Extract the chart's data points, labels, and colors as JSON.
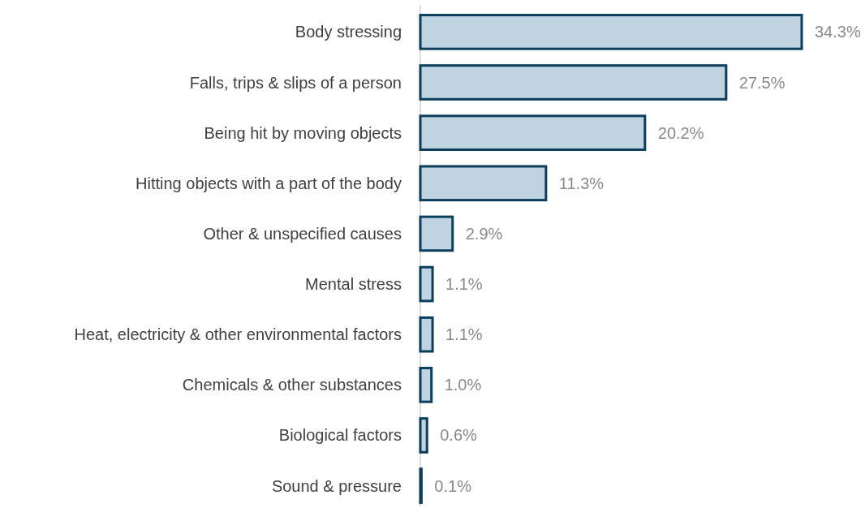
{
  "chart_data": {
    "type": "bar",
    "orientation": "horizontal",
    "categories": [
      "Body stressing",
      "Falls, trips & slips of a person",
      "Being hit by moving objects",
      "Hitting objects with a part of the body",
      "Other & unspecified causes",
      "Mental stress",
      "Heat, electricity & other environmental factors",
      "Chemicals & other substances",
      "Biological factors",
      "Sound & pressure"
    ],
    "values": [
      34.3,
      27.5,
      20.2,
      11.3,
      2.9,
      1.1,
      1.1,
      1.0,
      0.6,
      0.1
    ],
    "value_labels": [
      "34.3%",
      "27.5%",
      "20.2%",
      "11.3%",
      "2.9%",
      "1.1%",
      "1.1%",
      "1.0%",
      "0.6%",
      "0.1%"
    ],
    "color": "#bfd3e0"
  }
}
